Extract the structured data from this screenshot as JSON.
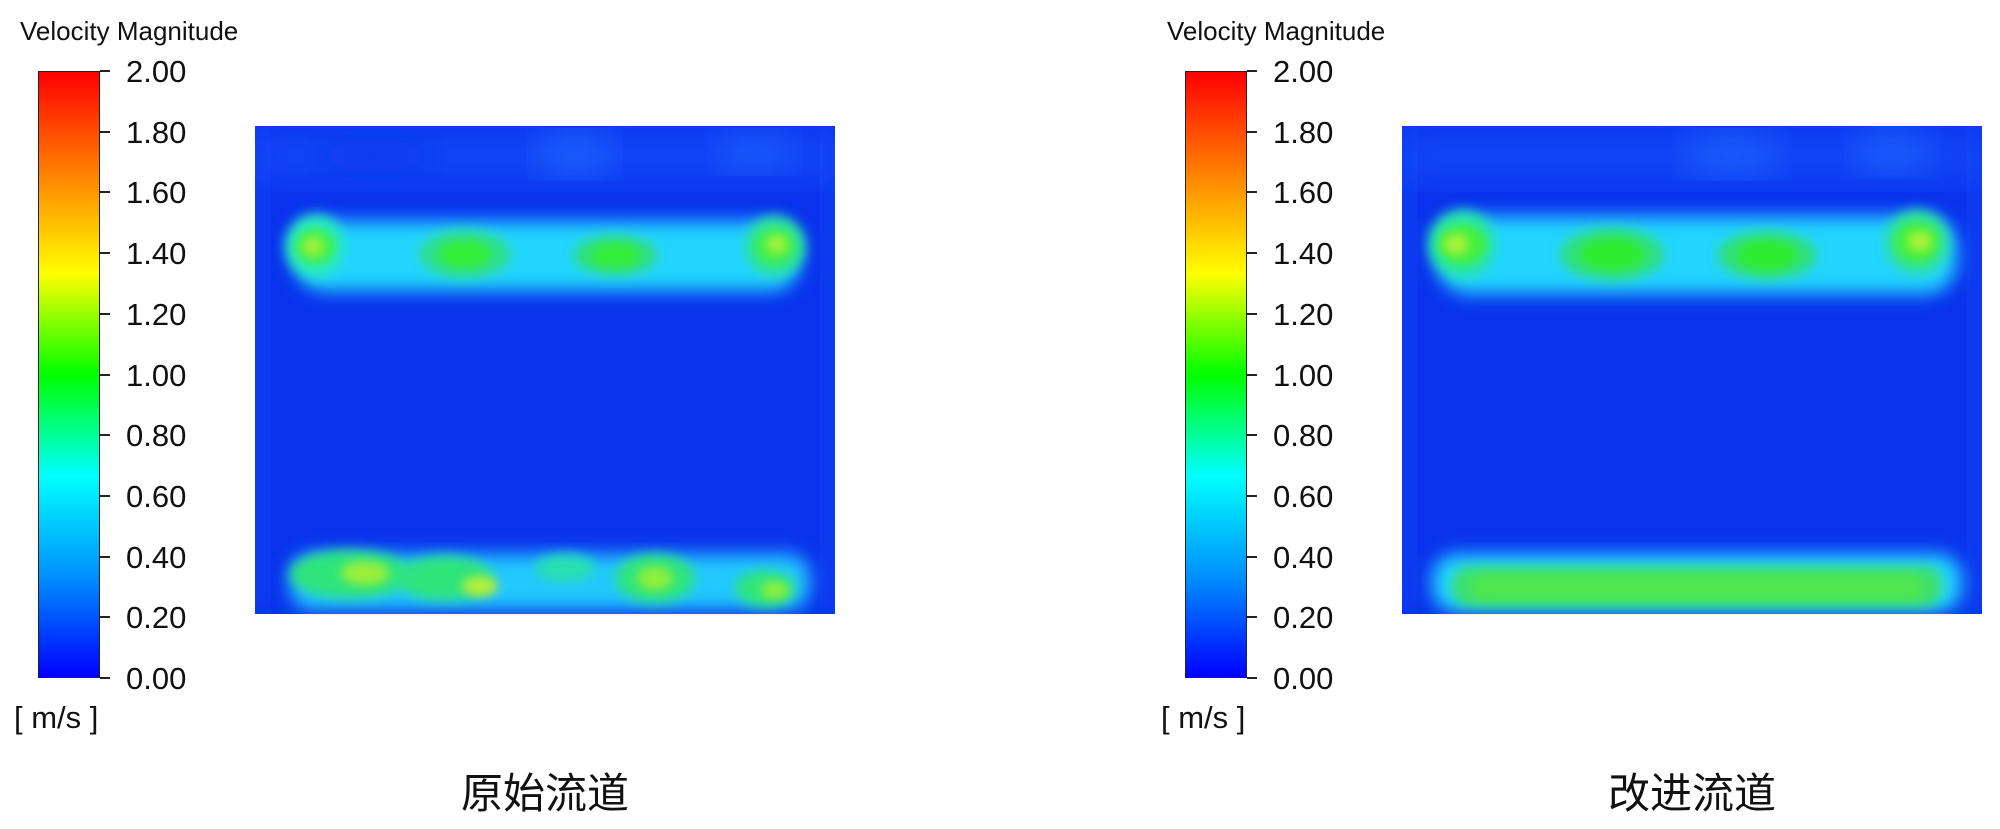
{
  "panels": [
    {
      "legend": {
        "title": "Velocity Magnitude",
        "units": "[ m/s ]",
        "ticks": [
          "2.00",
          "1.80",
          "1.60",
          "1.40",
          "1.20",
          "1.00",
          "0.80",
          "0.60",
          "0.40",
          "0.20",
          "0.00"
        ]
      },
      "caption": "原始流道"
    },
    {
      "legend": {
        "title": "Velocity Magnitude",
        "units": "[ m/s ]",
        "ticks": [
          "2.00",
          "1.80",
          "1.60",
          "1.40",
          "1.20",
          "1.00",
          "0.80",
          "0.60",
          "0.40",
          "0.20",
          "0.00"
        ]
      },
      "caption": "改进流道"
    }
  ],
  "colormap": [
    "#0000ff",
    "#0090ff",
    "#00ffff",
    "#00ff00",
    "#ffff00",
    "#ff8000",
    "#ff0000"
  ]
}
